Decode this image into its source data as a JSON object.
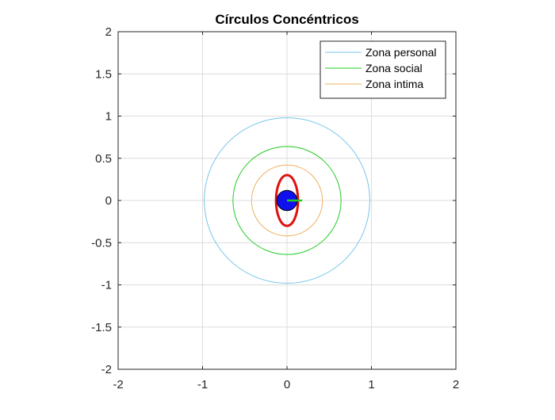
{
  "chart_data": {
    "type": "line",
    "title": "Círculos Concéntricos",
    "xlabel": "",
    "ylabel": "",
    "xlim": [
      -2,
      2
    ],
    "ylim": [
      -2,
      2
    ],
    "grid": true,
    "legend_location": "top-right",
    "x_ticks": [
      -2,
      -1,
      0,
      1,
      2
    ],
    "x_tick_labels": [
      "-2",
      "-1",
      "0",
      "1",
      "2"
    ],
    "y_ticks": [
      -2,
      -1.5,
      -1,
      -0.5,
      0,
      0.5,
      1,
      1.5,
      2
    ],
    "y_tick_labels": [
      "-2",
      "-1.5",
      "-1",
      "-0.5",
      "0",
      "0.5",
      "1",
      "1.5",
      "2"
    ],
    "series": [
      {
        "name": "Zona personal",
        "shape": "circle",
        "center": [
          0,
          0
        ],
        "radius": 0.98,
        "color": "#77c5ea"
      },
      {
        "name": "Zona social",
        "shape": "circle",
        "center": [
          0,
          0
        ],
        "radius": 0.64,
        "color": "#22cc22"
      },
      {
        "name": "Zona intima",
        "shape": "circle",
        "center": [
          0,
          0
        ],
        "radius": 0.42,
        "color": "#f0b060"
      }
    ],
    "annotations": [
      {
        "shape": "ellipse",
        "center": [
          0,
          0
        ],
        "rx": 0.13,
        "ry": 0.3,
        "color": "#e01010"
      },
      {
        "shape": "filled-circle",
        "center": [
          0,
          0
        ],
        "radius": 0.12,
        "color": "#1010ee"
      },
      {
        "shape": "segment",
        "from": [
          0,
          0
        ],
        "to": [
          0.18,
          0
        ],
        "color": "#22cc22"
      }
    ]
  }
}
